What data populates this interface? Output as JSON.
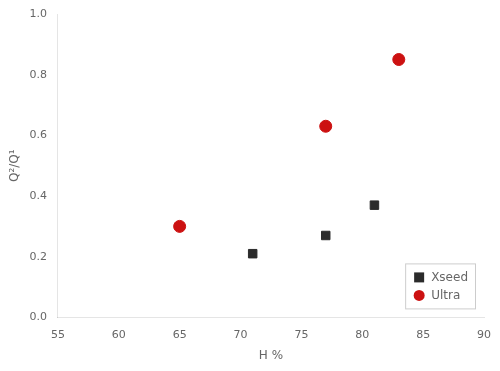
{
  "chart_data": {
    "type": "scatter",
    "xlabel": "H %",
    "ylabel": "Q²/Q¹",
    "series": [
      {
        "name": "Xseed",
        "color": "#2b2b2b",
        "marker": "square",
        "x": [
          71,
          77,
          81
        ],
        "values": [
          0.21,
          0.27,
          0.37
        ]
      },
      {
        "name": "Ultra",
        "color": "#cc1111",
        "marker": "circle",
        "x": [
          65,
          77,
          83
        ],
        "values": [
          0.3,
          0.63,
          0.85
        ]
      }
    ],
    "xlim": [
      55,
      90
    ],
    "ylim": [
      0.0,
      1.0
    ],
    "xticks": [
      55,
      60,
      65,
      70,
      75,
      80,
      85,
      90
    ],
    "yticks": [
      {
        "value": 0,
        "label": "0.0"
      },
      0.2,
      0.4,
      0.6,
      0.8,
      {
        "value": 1,
        "label": "1.0"
      }
    ],
    "legend": "lower right",
    "grid": false
  }
}
